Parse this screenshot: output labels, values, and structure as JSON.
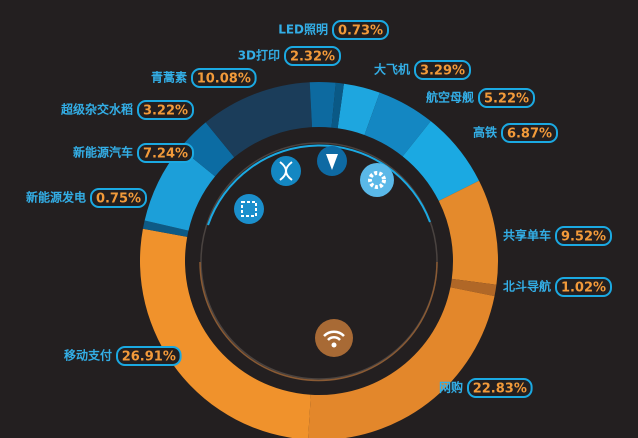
{
  "chart_data": {
    "type": "donut",
    "categories": [
      "大飞机",
      "航空母舰",
      "高铁",
      "共享单车",
      "北斗导航",
      "网购",
      "移动支付",
      "新能源发电",
      "新能源汽车",
      "超级杂交水稻",
      "青蒿素",
      "3D打印",
      "LED照明"
    ],
    "values": [
      3.29,
      5.22,
      6.87,
      9.52,
      1.02,
      22.83,
      26.91,
      0.75,
      7.24,
      3.22,
      10.08,
      2.32,
      0.73
    ],
    "value_labels": [
      "3.29%",
      "5.22%",
      "6.87%",
      "9.52%",
      "1.02%",
      "22.83%",
      "26.91%",
      "0.75%",
      "7.24%",
      "3.22%",
      "10.08%",
      "2.32%",
      "0.73%"
    ],
    "colors": [
      "#1ea6df",
      "#1487c2",
      "#1ba9e2",
      "#e48a2c",
      "#b06727",
      "#e3872b",
      "#f0922c",
      "#0e5a85",
      "#1c9fd9",
      "#0c6ca3",
      "#1b3d5a",
      "#0d6aa0",
      "#0a5986"
    ]
  }
}
